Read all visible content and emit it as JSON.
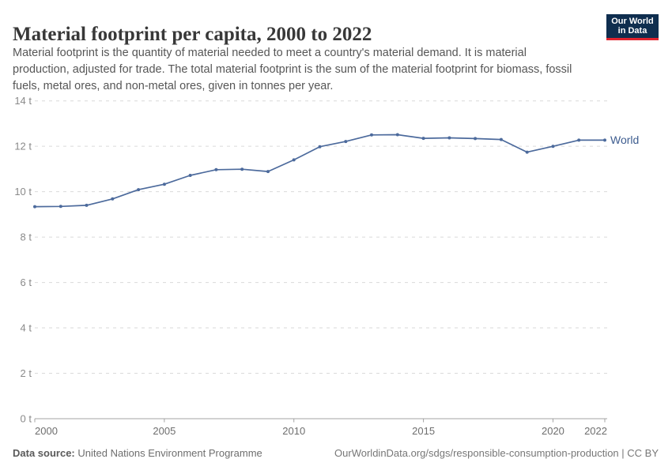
{
  "header": {
    "title": "Material footprint per capita, 2000 to 2022",
    "subtitle_lines": [
      "Material footprint is the quantity of material needed to meet a country's material demand. It is material",
      "production, adjusted for trade. The total material footprint is the sum of the material footprint for biomass, fossil",
      "fuels, metal ores, and non-metal ores, given in tonnes per year."
    ],
    "logo": {
      "line1": "Our World",
      "line2": "in Data",
      "bg": "#0f2e4f",
      "accent": "#e0232e"
    }
  },
  "chart_data": {
    "type": "line",
    "title": "Material footprint per capita, 2000 to 2022",
    "x": [
      2000,
      2001,
      2002,
      2003,
      2004,
      2005,
      2006,
      2007,
      2008,
      2009,
      2010,
      2011,
      2012,
      2013,
      2014,
      2015,
      2016,
      2017,
      2018,
      2019,
      2020,
      2021,
      2022
    ],
    "series": [
      {
        "name": "World",
        "color": "#4c6a9c",
        "label_color": "#3d5c8f",
        "values": [
          9.34,
          9.35,
          9.4,
          9.68,
          10.09,
          10.33,
          10.72,
          10.97,
          10.99,
          10.89,
          11.4,
          11.98,
          12.21,
          12.5,
          12.51,
          12.35,
          12.37,
          12.34,
          12.3,
          11.74,
          12.0,
          12.27,
          12.27
        ]
      }
    ],
    "unit": "tonnes per year",
    "xticks": [
      2000,
      2005,
      2010,
      2015,
      2020,
      2022
    ],
    "yticks": [
      0,
      2,
      4,
      6,
      8,
      10,
      12,
      14
    ],
    "ytick_format": "{v} t",
    "xlim": [
      2000,
      2022
    ],
    "ylim": [
      0,
      14
    ],
    "grid": "horizontal-dashed",
    "legend_position": "end-of-line"
  },
  "footer": {
    "source_label": "Data source:",
    "source_value": "United Nations Environment Programme",
    "credit": "OurWorldinData.org/sdgs/responsible-consumption-production | CC BY"
  }
}
